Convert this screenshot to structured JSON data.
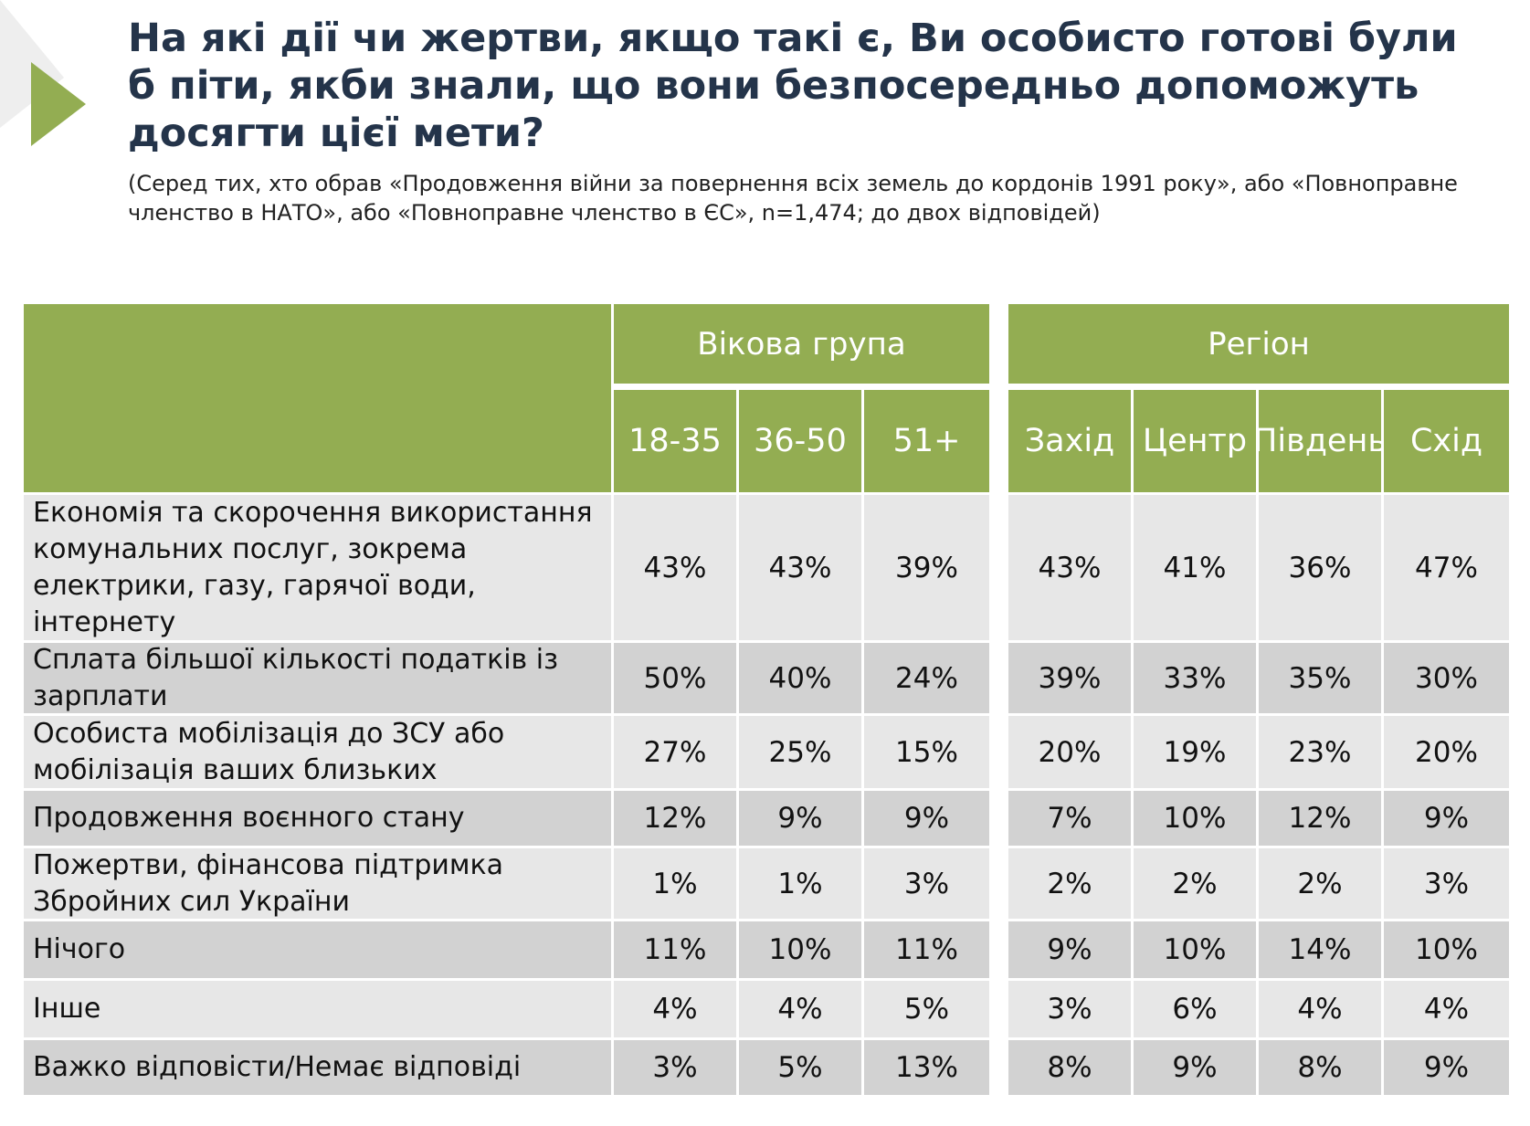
{
  "colors": {
    "accent_green": "#93ad52",
    "title_color": "#24344a",
    "row_light": "#e7e7e7",
    "row_dark": "#d2d2d2"
  },
  "header": {
    "title": "На які дії чи жертви, якщо такі є, Ви особисто готові були б піти, якби знали, що вони безпосередньо допоможуть досягти цієї мети?",
    "subtitle": "(Серед тих, хто обрав «Продовження війни за повернення всіх земель до кордонів 1991 року», або «Повноправне членство в НАТО», або «Повноправне членство в ЄС», n=1,474; до двох  відповідей)"
  },
  "chart_data": {
    "type": "table",
    "column_groups": [
      {
        "name": "Вікова група",
        "columns": [
          "18-35",
          "36-50",
          "51+"
        ]
      },
      {
        "name": "Регіон",
        "columns": [
          "Захід",
          "Центр",
          "Південь",
          "Схід"
        ]
      }
    ],
    "rows": [
      {
        "label": "Економія та скорочення використання комунальних послуг, зокрема електрики, газу, гарячої води, інтернету",
        "values": [
          "43%",
          "43%",
          "39%",
          "43%",
          "41%",
          "36%",
          "47%"
        ]
      },
      {
        "label": "Сплата більшої кількості податків із зарплати",
        "values": [
          "50%",
          "40%",
          "24%",
          "39%",
          "33%",
          "35%",
          "30%"
        ]
      },
      {
        "label": "Особиста мобілізація до ЗСУ або мобілізація ваших близьких",
        "values": [
          "27%",
          "25%",
          "15%",
          "20%",
          "19%",
          "23%",
          "20%"
        ]
      },
      {
        "label": "Продовження воєнного стану",
        "values": [
          "12%",
          "9%",
          "9%",
          "7%",
          "10%",
          "12%",
          "9%"
        ]
      },
      {
        "label": "Пожертви, фінансова підтримка Збройних сил України",
        "values": [
          "1%",
          "1%",
          "3%",
          "2%",
          "2%",
          "2%",
          "3%"
        ]
      },
      {
        "label": "Нічого",
        "values": [
          "11%",
          "10%",
          "11%",
          "9%",
          "10%",
          "14%",
          "10%"
        ]
      },
      {
        "label": "Інше",
        "values": [
          "4%",
          "4%",
          "5%",
          "3%",
          "6%",
          "4%",
          "4%"
        ]
      },
      {
        "label": "Важко відповісти/Немає відповіді",
        "values": [
          "3%",
          "5%",
          "13%",
          "8%",
          "9%",
          "8%",
          "9%"
        ]
      }
    ]
  }
}
